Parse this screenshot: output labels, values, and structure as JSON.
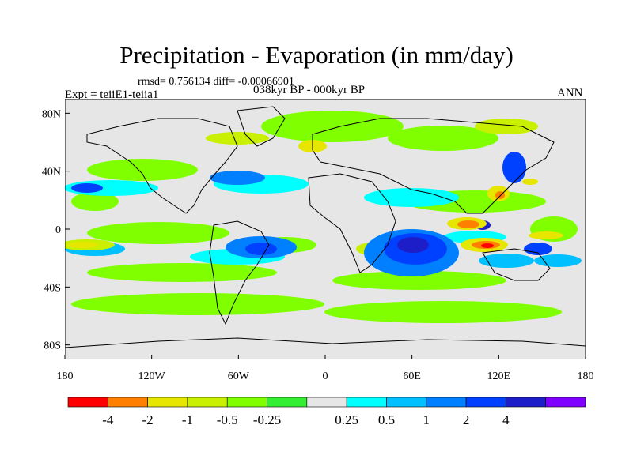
{
  "title": "Precipitation - Evaporation (in mm/day)",
  "stats_line": "rmsd= 0.756134 diff= -0.00066901",
  "experiment_label": "Expt = teiiE1-teiia1",
  "period_label": "038kyr BP - 000kyr BP",
  "season_label": "ANN",
  "map": {
    "projection": "cylindrical equidistant",
    "lon_range": [
      -180,
      180
    ],
    "lat_range": [
      -90,
      90
    ],
    "land_mask_color": "#e6e6e6",
    "coastline_color": "#000000",
    "x_ticks": [
      {
        "lon": -180,
        "label": "180"
      },
      {
        "lon": -120,
        "label": "120W"
      },
      {
        "lon": -60,
        "label": "60W"
      },
      {
        "lon": 0,
        "label": "0"
      },
      {
        "lon": 60,
        "label": "60E"
      },
      {
        "lon": 120,
        "label": "120E"
      },
      {
        "lon": 180,
        "label": "180"
      }
    ],
    "y_ticks": [
      {
        "lat": 80,
        "label": "80N"
      },
      {
        "lat": 40,
        "label": "40N"
      },
      {
        "lat": 0,
        "label": "0"
      },
      {
        "lat": -40,
        "label": "40S"
      },
      {
        "lat": -80,
        "label": "80S"
      }
    ]
  },
  "colorbar": {
    "colors": [
      "#ff0000",
      "#ff8000",
      "#e6e600",
      "#c8f000",
      "#80ff00",
      "#33ee33",
      "#e6e6e6",
      "#00ffff",
      "#00c0ff",
      "#0080ff",
      "#0040ff",
      "#1e1ec8",
      "#8000ff"
    ],
    "labels": [
      "-4",
      "-2",
      "-1",
      "-0.5",
      "-0.25",
      "0.25",
      "0.5",
      "1",
      "2",
      "4"
    ]
  }
}
